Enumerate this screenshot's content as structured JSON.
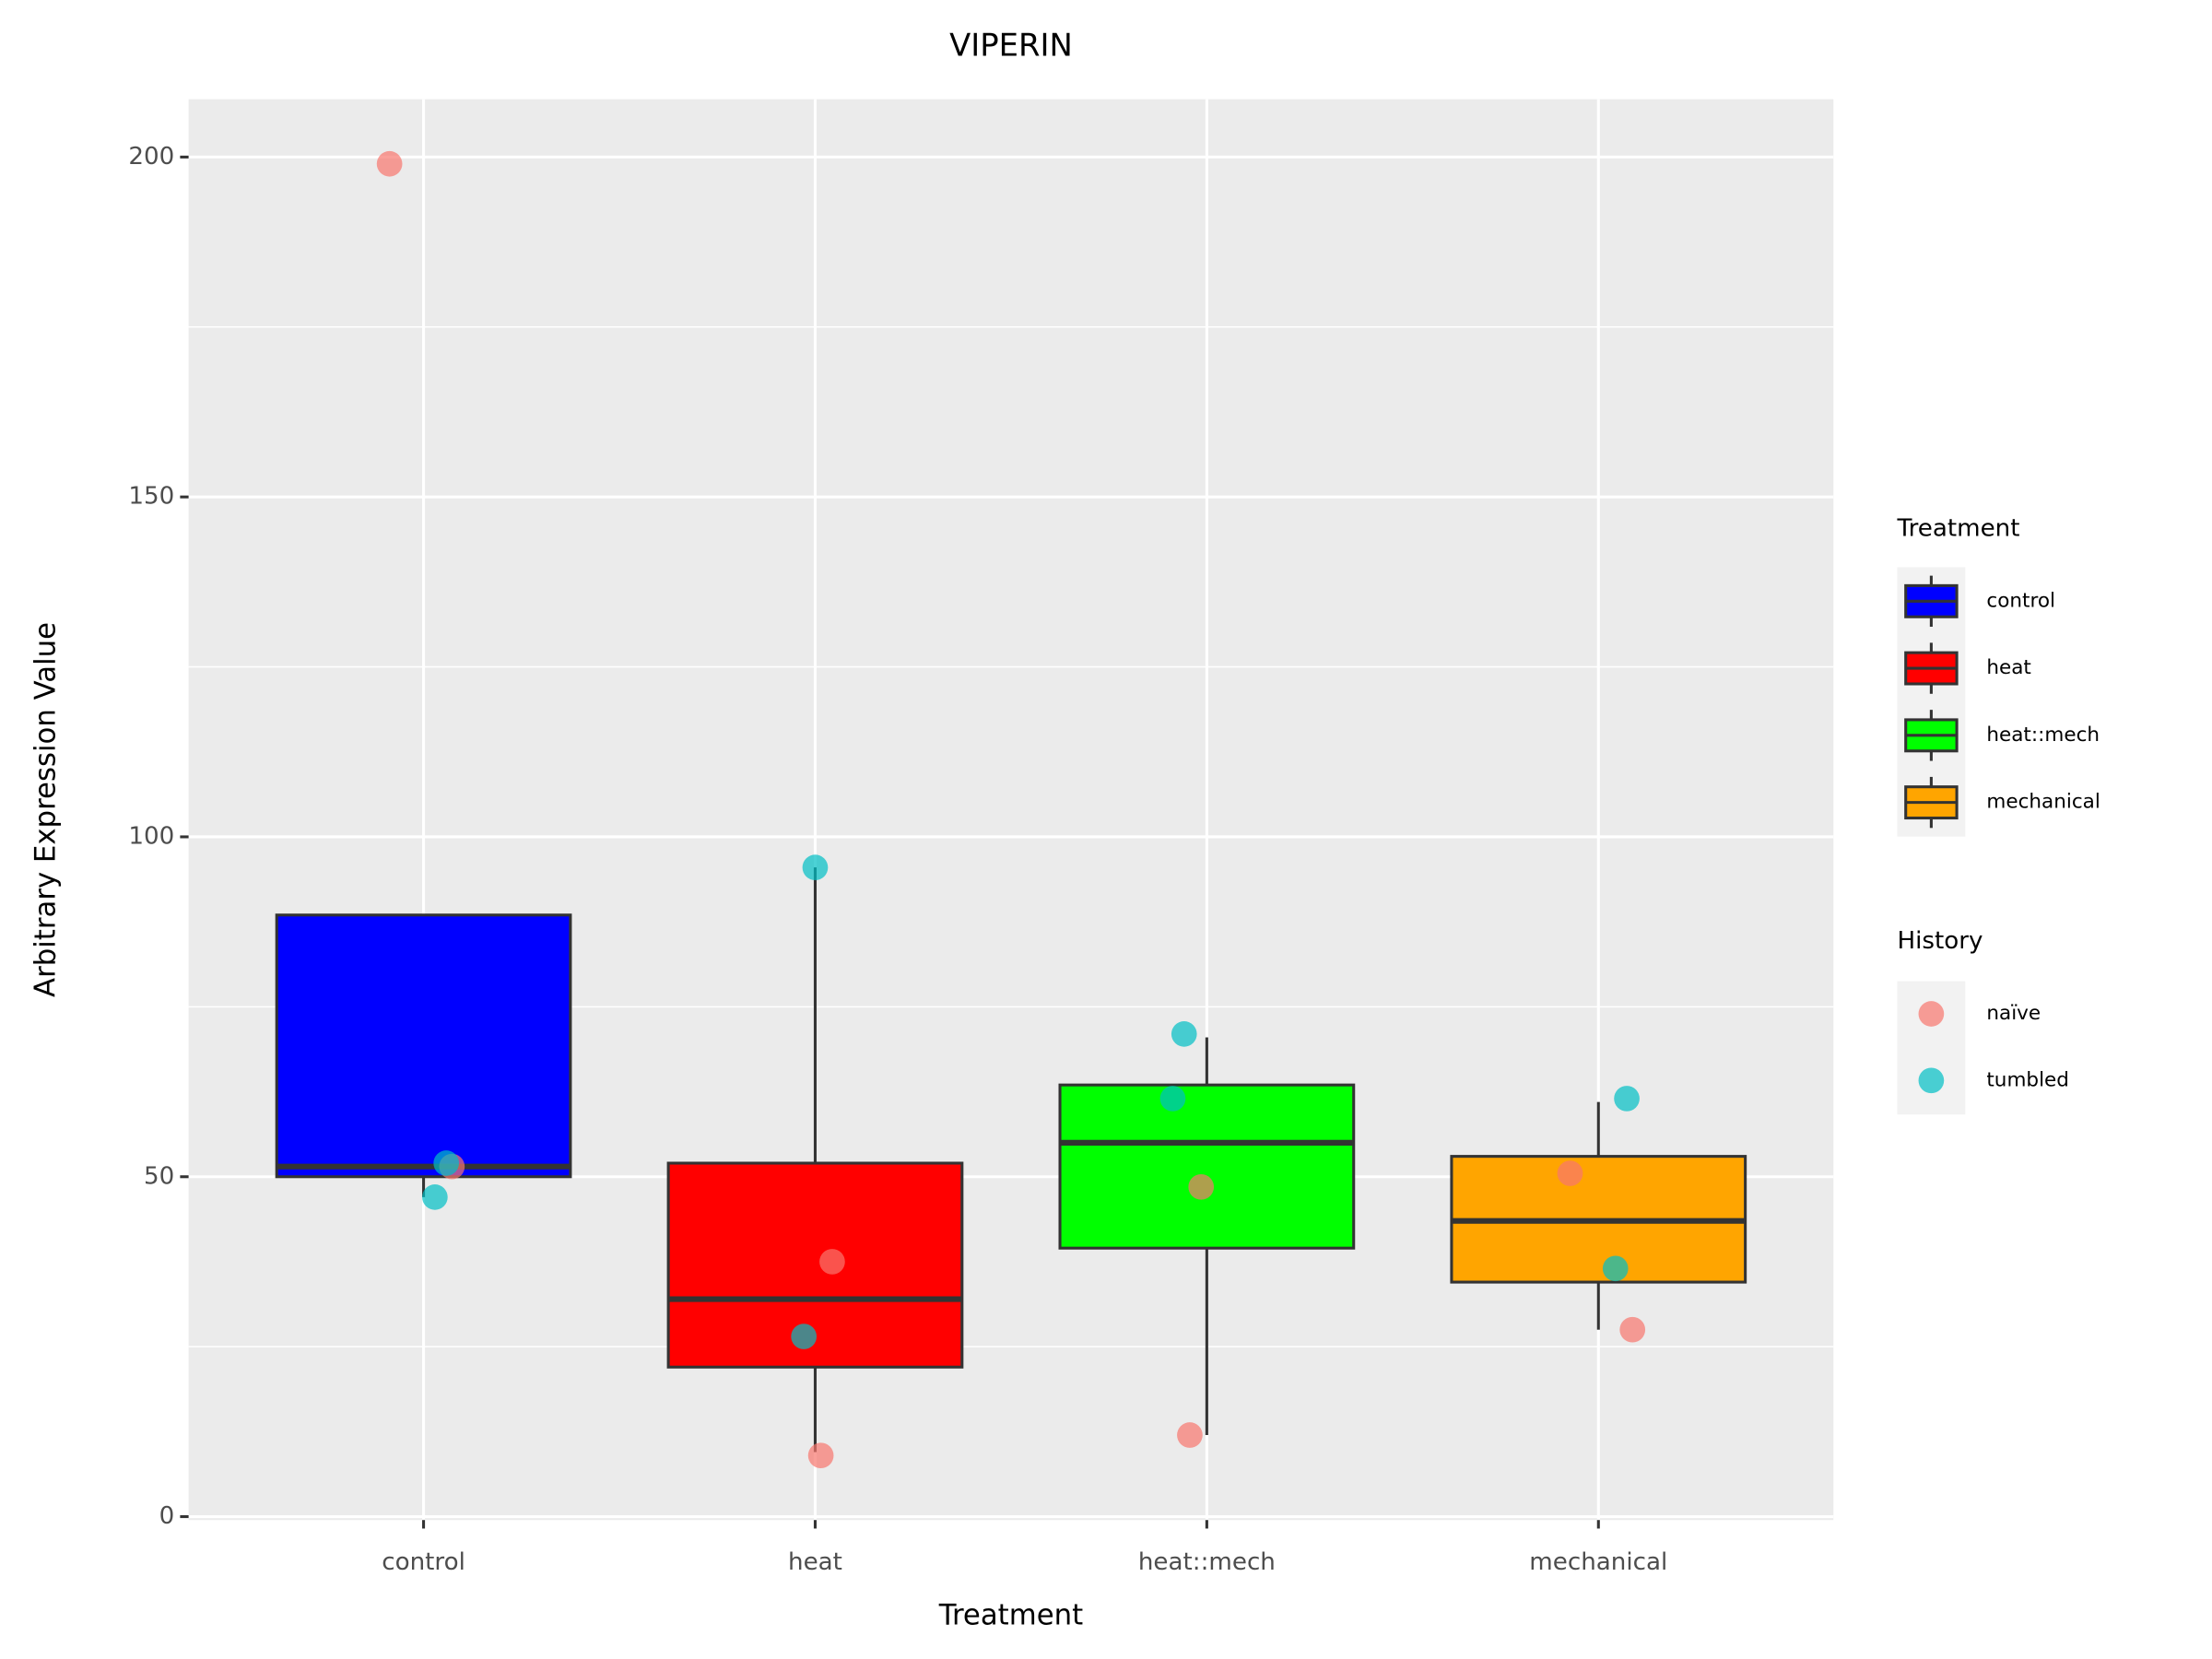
{
  "chart_data": {
    "type": "boxplot",
    "title": "VIPERIN",
    "x_label": "Treatment",
    "y_label": "Arbitrary Expression Value",
    "categories": [
      "control",
      "heat",
      "heat::mech",
      "mechanical"
    ],
    "box_colors": [
      "#0000FF",
      "#FF0000",
      "#00FF00",
      "#FFA500"
    ],
    "legend_title": "Treatment",
    "whisker_low": [
      47,
      9.5,
      12,
      27.5
    ],
    "q1": [
      50,
      22,
      39.5,
      34.5
    ],
    "median": [
      51.5,
      32,
      55,
      43.5
    ],
    "q3": [
      88.5,
      52,
      63.5,
      53
    ],
    "whisker_high": [
      52,
      95.5,
      70.5,
      61
    ],
    "points_legend_title": "History",
    "series": [
      {
        "name": "naïve",
        "color": "#F8766D",
        "x": [
          "control",
          "control",
          "heat",
          "heat",
          "heat::mech",
          "heat::mech",
          "mechanical",
          "mechanical"
        ],
        "values": [
          199,
          51.5,
          37.5,
          9,
          48.5,
          12,
          50.5,
          27.5
        ]
      },
      {
        "name": "tumbled",
        "color": "#00BFC4",
        "x": [
          "control",
          "control",
          "heat",
          "heat",
          "heat::mech",
          "heat::mech",
          "mechanical",
          "mechanical"
        ],
        "values": [
          52,
          47,
          95.5,
          26.5,
          71,
          61.5,
          61.5,
          36.5
        ]
      }
    ],
    "ylim": [
      -0.5,
      208.5
    ],
    "yticks": [
      0,
      50,
      100,
      150,
      200
    ],
    "y_minor_ticks": [
      25,
      75,
      125,
      175
    ],
    "grid": true
  }
}
